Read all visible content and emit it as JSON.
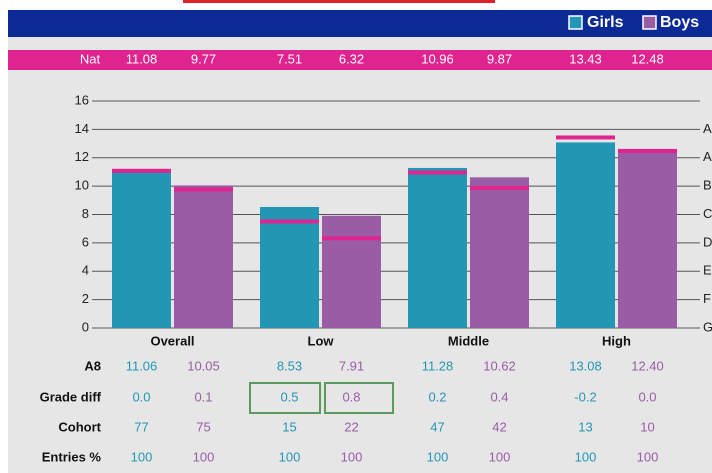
{
  "legend": [
    "Girls",
    "Boys"
  ],
  "nat_label": "Nat",
  "chart_data": {
    "type": "bar",
    "categories": [
      "Overall",
      "Low",
      "Middle",
      "High"
    ],
    "series": [
      {
        "name": "Girls",
        "color": "#2396b6",
        "values": [
          11.06,
          8.53,
          11.28,
          13.08
        ],
        "value_labels": [
          "11.06",
          "8.53",
          "11.28",
          "13.08"
        ],
        "nat": [
          11.08,
          7.51,
          10.96,
          13.43
        ]
      },
      {
        "name": "Boys",
        "color": "#9b5ca6",
        "values": [
          10.05,
          7.91,
          10.62,
          12.4
        ],
        "value_labels": [
          "10.05",
          "7.91",
          "10.62",
          "12.40"
        ],
        "nat": [
          9.77,
          6.32,
          9.87,
          12.48
        ]
      }
    ],
    "nat_color": "#e0248f",
    "ylim": [
      0,
      16
    ],
    "yticks": [
      0,
      2,
      4,
      6,
      8,
      10,
      12,
      14,
      16
    ],
    "grade_labels": [
      "G",
      "F",
      "E",
      "D",
      "C",
      "B",
      "A",
      "A"
    ],
    "grid": true
  },
  "table": {
    "rows": [
      {
        "label": "A8"
      },
      {
        "label": "Grade diff",
        "values": [
          "0.0",
          "0.1",
          "0.5",
          "0.8",
          "0.2",
          "0.4",
          "-0.2",
          "0.0"
        ]
      },
      {
        "label": "Cohort",
        "values": [
          "77",
          "75",
          "15",
          "22",
          "47",
          "42",
          "13",
          "10"
        ]
      },
      {
        "label": "Entries %",
        "values": [
          "100",
          "100",
          "100",
          "100",
          "100",
          "100",
          "100",
          "100"
        ]
      }
    ]
  }
}
